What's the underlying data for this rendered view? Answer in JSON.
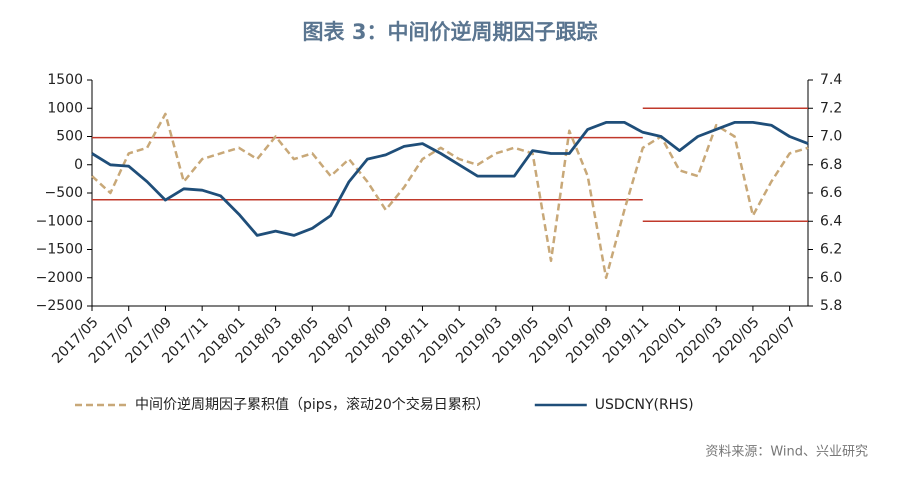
{
  "chart_data": {
    "type": "line",
    "title": "图表 3：中间价逆周期因子跟踪",
    "source": "资料来源：Wind、兴业研究",
    "categories": [
      "2017/05",
      null,
      "2017/07",
      null,
      "2017/09",
      null,
      "2017/11",
      null,
      "2018/01",
      null,
      "2018/03",
      null,
      "2018/05",
      null,
      "2018/07",
      null,
      "2018/09",
      null,
      "2018/11",
      null,
      "2019/01",
      null,
      "2019/03",
      null,
      "2019/05",
      null,
      "2019/07",
      null,
      "2019/09",
      null,
      "2019/11",
      null,
      "2020/01",
      null,
      "2020/03",
      null,
      "2020/05",
      null,
      "2020/07",
      null
    ],
    "series": [
      {
        "name": "中间价逆周期因子累积值（pips，滚动20个交易日累积）",
        "color": "#c8a878",
        "dashed": true,
        "axis": "y",
        "values": [
          -200,
          -500,
          200,
          300,
          900,
          -300,
          100,
          200,
          300,
          100,
          500,
          100,
          200,
          -200,
          100,
          -300,
          -800,
          -400,
          100,
          300,
          100,
          0,
          200,
          300,
          200,
          -1700,
          600,
          -200,
          -2000,
          -800,
          300,
          500,
          -100,
          -200,
          700,
          500,
          -900,
          -300,
          200,
          300
        ]
      },
      {
        "name": "USDCNY(RHS)",
        "color": "#1f4e79",
        "dashed": false,
        "axis": "y2",
        "values": [
          6.88,
          6.8,
          6.79,
          6.68,
          6.55,
          6.63,
          6.62,
          6.58,
          6.45,
          6.3,
          6.33,
          6.3,
          6.35,
          6.44,
          6.68,
          6.84,
          6.87,
          6.93,
          6.95,
          6.88,
          6.8,
          6.72,
          6.72,
          6.72,
          6.9,
          6.88,
          6.88,
          7.05,
          7.1,
          7.1,
          7.03,
          7,
          6.9,
          7,
          7.05,
          7.1,
          7.1,
          7.08,
          7,
          6.95
        ]
      }
    ],
    "ylim": [
      -2500,
      1500
    ],
    "yticks": [
      {
        "value": -2500,
        "label": "−2500"
      },
      {
        "value": -2000,
        "label": "−2000"
      },
      {
        "value": -1500,
        "label": "−1500"
      },
      {
        "value": -1000,
        "label": "−1000"
      },
      {
        "value": -500,
        "label": "−500"
      },
      0,
      500,
      1000,
      1500
    ],
    "y2lim": [
      5.8,
      7.4
    ],
    "y2ticks": [
      5.8,
      6,
      6.2,
      6.4,
      6.6,
      6.8,
      7,
      7.2,
      7.4
    ],
    "reference_lines": [
      {
        "axis": "y",
        "value": 480,
        "to": "2019/11",
        "color": "#c0392b"
      },
      {
        "axis": "y",
        "value": -620,
        "to": "2019/11",
        "color": "#c0392b"
      },
      {
        "axis": "y2",
        "value": 7.2,
        "from": "2019/11",
        "color": "#c0392b"
      },
      {
        "axis": "y2",
        "value": 6.4,
        "from": "2019/11",
        "color": "#c0392b"
      }
    ],
    "legend": "bottom"
  }
}
